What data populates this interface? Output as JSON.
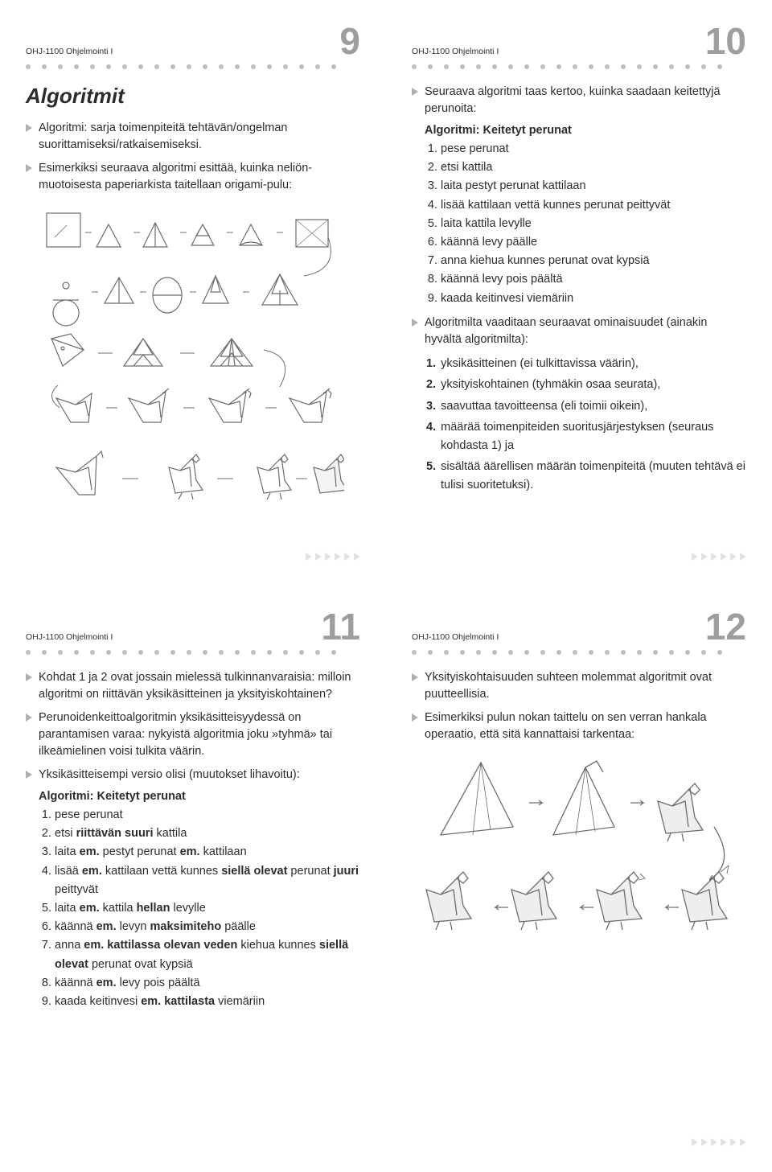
{
  "course": "OHJ-1100 Ohjelmointi I",
  "pages": {
    "p9": "9",
    "p10": "10",
    "p11": "11",
    "p12": "12"
  },
  "s9": {
    "title": "Algoritmit",
    "b1": "Algoritmi: sarja toimenpiteitä tehtävän/ongelman suorittamiseksi/ratkaisemiseksi.",
    "b2": "Esimerkiksi seuraava algoritmi esittää, kuinka neliön­muotoisesta paperiarkista taitellaan origami-pulu:"
  },
  "s10": {
    "b1": "Seuraava algoritmi taas kertoo, kuinka saadaan keitettyjä perunoita:",
    "algo_title": "Algoritmi: Keitetyt perunat",
    "steps": [
      "pese perunat",
      "etsi kattila",
      "laita pestyt perunat kattilaan",
      "lisää kattilaan vettä kunnes perunat peittyvät",
      "laita kattila levylle",
      "käännä levy päälle",
      "anna kiehua kunnes perunat ovat kypsiä",
      "käännä levy pois päältä",
      "kaada keitinvesi viemäriin"
    ],
    "b2": "Algoritmilta vaaditaan seuraavat ominaisuudet (ainakin hyvältä algoritmilta):",
    "props": [
      "yksikäsitteinen (ei tulkittavissa väärin),",
      "yksityiskohtainen (tyhmäkin osaa seurata),",
      "saavuttaa tavoitteensa (eli toimii oikein),",
      "määrää toimenpiteiden suoritusjärjestyksen (seuraus kohdasta 1) ja",
      "sisältää äärellisen määrän toimenpiteitä (muuten tehtävä ei tulisi suoritetuksi)."
    ]
  },
  "s11": {
    "b1": "Kohdat 1 ja 2 ovat jossain mielessä tulkinnanvaraisia: milloin algoritmi on riittävän yksikäsitteinen ja yksityiskohtainen?",
    "b2": "Perunoidenkeittoalgoritmin yksikäsitteisyydessä on parantamisen varaa: nykyistä algoritmia joku »tyhmä» tai ilkeämielinen voisi tulkita väärin.",
    "b3": "Yksikäsitteisempi versio olisi (muutokset lihavoitu):",
    "algo_title": "Algoritmi: Keitetyt perunat",
    "steps_html": [
      "pese perunat",
      "etsi <b>riittävän suuri</b> kattila",
      "laita <b>em.</b> pestyt perunat <b>em.</b> kattilaan",
      "lisää <b>em.</b> kattilaan vettä kunnes <b>siellä olevat</b> perunat <b>juuri</b> peittyvät",
      "laita <b>em.</b> kattila <b>hellan</b> levylle",
      "käännä <b>em.</b> levyn <b>maksimiteho</b> päälle",
      "anna <b>em. kattilassa olevan veden</b> kiehua kunnes <b>siellä olevat</b> perunat ovat kypsiä",
      "käännä <b>em.</b> levy pois päältä",
      "kaada keitinvesi <b>em. kattilasta</b> viemäriin"
    ]
  },
  "s12": {
    "b1": "Yksityiskohtaisuuden suhteen molemmat algoritmit ovat puutteellisia.",
    "b2": "Esimerkiksi pulun nokan taittelu on sen verran hankala operaatio, että sitä kannattaisi tarkentaa:"
  },
  "colors": {
    "grey_tri": "#b0b0b0",
    "light_tri": "#e3e3e3",
    "page_num": "#9e9e9e",
    "dot": "#bdbdbd",
    "line": "#6d6d6d",
    "shade": "#dcdcdc"
  }
}
